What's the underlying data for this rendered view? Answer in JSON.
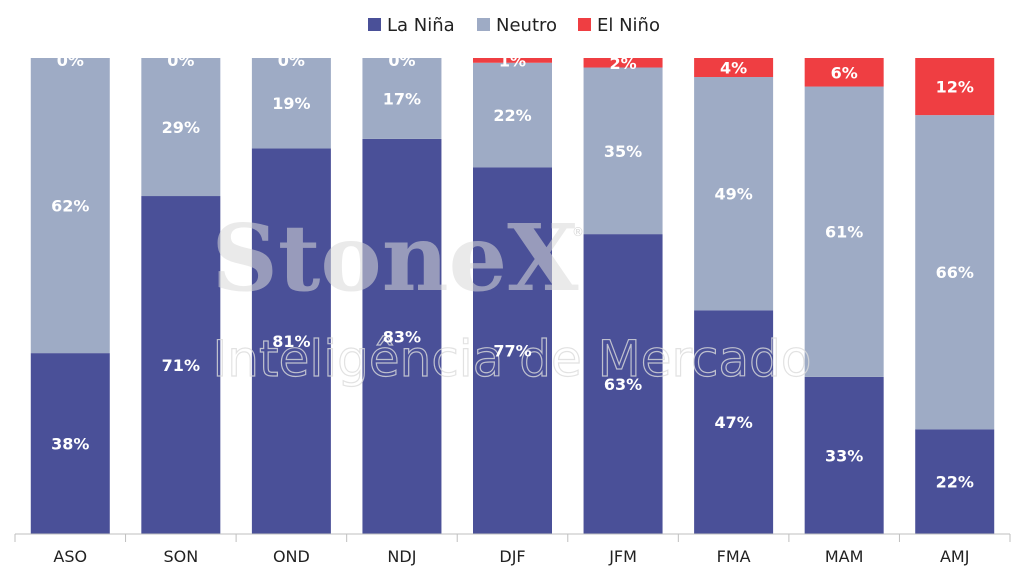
{
  "watermark": {
    "brand": "StoneX",
    "registered": "®",
    "tagline": "Inteligência de Mercado"
  },
  "chart_data": {
    "type": "bar",
    "stacked": true,
    "percent_stacked": true,
    "title": "",
    "xlabel": "",
    "ylabel": "",
    "ylim": [
      0,
      100
    ],
    "grid": false,
    "legend_position": "top-center",
    "categories": [
      "ASO",
      "SON",
      "OND",
      "NDJ",
      "DJF",
      "JFM",
      "FMA",
      "MAM",
      "AMJ"
    ],
    "series": [
      {
        "name": "La Niña",
        "color": "#4a5098",
        "values": [
          38,
          71,
          81,
          83,
          77,
          63,
          47,
          33,
          22
        ]
      },
      {
        "name": "Neutro",
        "color": "#9eabc5",
        "values": [
          62,
          29,
          19,
          17,
          22,
          35,
          49,
          61,
          66
        ]
      },
      {
        "name": "El Niño",
        "color": "#ef3e42",
        "values": [
          0,
          0,
          0,
          0,
          1,
          2,
          4,
          6,
          12
        ]
      }
    ],
    "data_labels": [
      [
        "38%",
        "71%",
        "81%",
        "83%",
        "77%",
        "63%",
        "47%",
        "33%",
        "22%"
      ],
      [
        "62%",
        "29%",
        "19%",
        "17%",
        "22%",
        "35%",
        "49%",
        "61%",
        "66%"
      ],
      [
        "0%",
        "0%",
        "0%",
        "0%",
        "1%",
        "2%",
        "4%",
        "6%",
        "12%"
      ]
    ]
  }
}
